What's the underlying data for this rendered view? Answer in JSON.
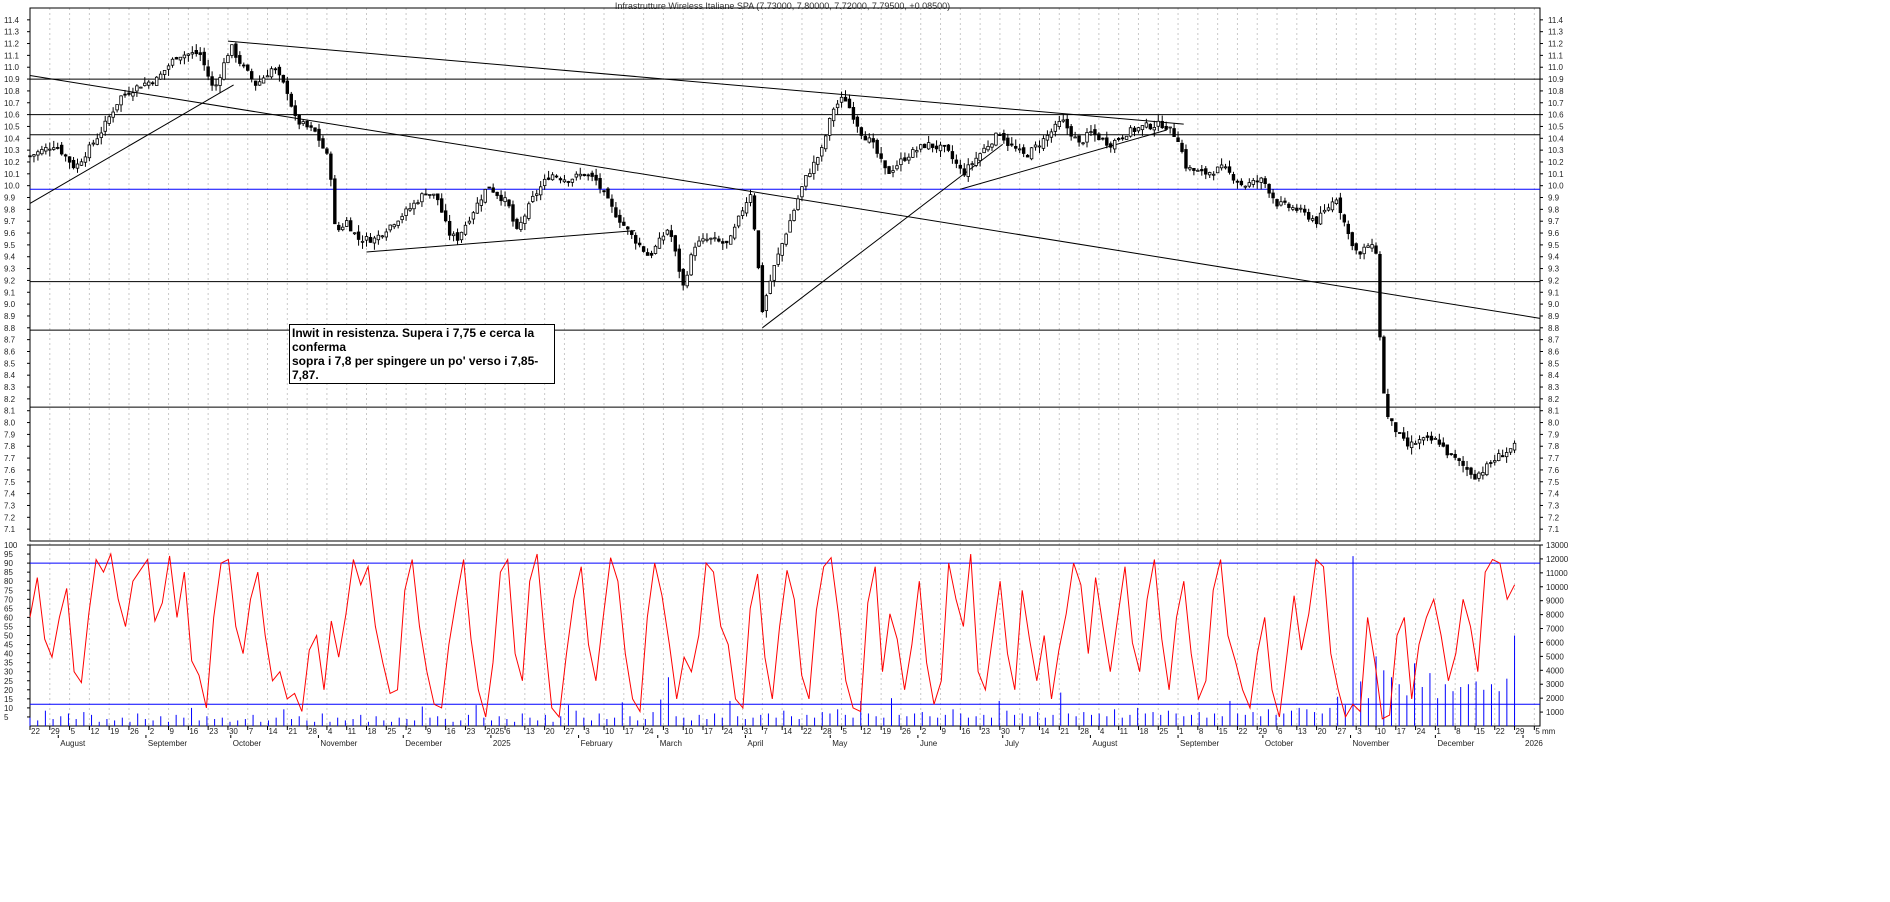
{
  "chart_title": "Infrastrutture Wireless Italiane SPA (7.73000, 7.80000, 7.72000, 7.79500, +0.08500)",
  "annotation": {
    "line1": "Inwit in resistenza. Supera i 7,75 e cerca la conferma",
    "line2": "sopra i 7,8 per spingere un po' verso i 7,85-7,87."
  },
  "colors": {
    "candle": "#000000",
    "stochastic": "#ff0000",
    "volume": "#0000ff",
    "support_blue": "#0000ff",
    "horizontal_line": "#000000",
    "trendline": "#000000",
    "grid": "#c8c8c8"
  },
  "chart_data": [
    {
      "type": "candlestick",
      "title": "Infrastrutture Wireless Italiane SPA (7.73000, 7.80000, 7.72000, 7.79500, +0.08500)",
      "last_ohlc": {
        "open": 7.73,
        "high": 7.8,
        "low": 7.72,
        "close": 7.795,
        "change": 0.085
      },
      "ylim": [
        7.0,
        11.5
      ],
      "ytick_labels": [
        "7.1",
        "7.2",
        "7.3",
        "7.4",
        "7.5",
        "7.6",
        "7.7",
        "7.8",
        "7.9",
        "8.0",
        "8.1",
        "8.2",
        "8.3",
        "8.4",
        "8.5",
        "8.6",
        "8.7",
        "8.8",
        "8.9",
        "9.0",
        "9.1",
        "9.2",
        "9.3",
        "9.4",
        "9.5",
        "9.6",
        "9.7",
        "9.8",
        "9.9",
        "10.0",
        "10.1",
        "10.2",
        "10.3",
        "10.4",
        "10.5",
        "10.6",
        "10.7",
        "10.8",
        "10.9",
        "11.0",
        "11.1",
        "11.2",
        "11.3",
        "11.4"
      ],
      "xtick_labels": [
        "22",
        "29",
        "5",
        "12",
        "19",
        "26",
        "2",
        "9",
        "16",
        "23",
        "30",
        "7",
        "14",
        "21",
        "28",
        "4",
        "11",
        "18",
        "25",
        "2",
        "9",
        "16",
        "23",
        "2025",
        "6",
        "13",
        "20",
        "27",
        "3",
        "10",
        "17",
        "24",
        "3",
        "10",
        "17",
        "24",
        "31",
        "7",
        "14",
        "22",
        "28",
        "5",
        "12",
        "19",
        "26",
        "2",
        "9",
        "16",
        "23",
        "30",
        "7",
        "14",
        "21",
        "28",
        "4",
        "11",
        "18",
        "25",
        "1",
        "8",
        "15",
        "22",
        "29",
        "6",
        "13",
        "20",
        "27",
        "3",
        "10",
        "17",
        "24",
        "1",
        "8",
        "15",
        "22",
        "29",
        "5"
      ],
      "month_labels": [
        "August",
        "September",
        "October",
        "November",
        "December",
        "2025",
        "February",
        "March",
        "April",
        "May",
        "June",
        "July",
        "August",
        "September",
        "October",
        "November",
        "December",
        "2026"
      ],
      "horizontal_levels": [
        {
          "value": 10.9,
          "color": "#000000"
        },
        {
          "value": 10.6,
          "color": "#000000"
        },
        {
          "value": 10.43,
          "color": "#000000"
        },
        {
          "value": 9.97,
          "color": "#0000ff"
        },
        {
          "value": 9.19,
          "color": "#000000"
        },
        {
          "value": 8.78,
          "color": "#000000"
        },
        {
          "value": 8.13,
          "color": "#000000"
        }
      ],
      "trendlines": [
        {
          "from": [
            "2024-07-22",
            9.85
          ],
          "to": [
            "2024-10-02",
            10.85
          ]
        },
        {
          "from": [
            "2024-07-22",
            10.93
          ],
          "to": [
            "2026-01-07",
            8.88
          ]
        },
        {
          "from": [
            "2024-09-30",
            11.22
          ],
          "to": [
            "2025-09-03",
            10.52
          ]
        },
        {
          "from": [
            "2024-11-18",
            9.44
          ],
          "to": [
            "2025-02-21",
            9.62
          ]
        },
        {
          "from": [
            "2025-04-07",
            8.8
          ],
          "to": [
            "2025-07-01",
            10.35
          ]
        },
        {
          "from": [
            "2025-06-16",
            9.97
          ],
          "to": [
            "2025-08-28",
            10.47
          ]
        }
      ],
      "close_path": [
        [
          "2024-07-22",
          10.25
        ],
        [
          "2024-07-31",
          10.35
        ],
        [
          "2024-08-07",
          10.15
        ],
        [
          "2024-08-16",
          10.45
        ],
        [
          "2024-08-23",
          10.75
        ],
        [
          "2024-08-30",
          10.85
        ],
        [
          "2024-09-05",
          10.9
        ],
        [
          "2024-09-12",
          11.1
        ],
        [
          "2024-09-20",
          11.12
        ],
        [
          "2024-09-25",
          10.8
        ],
        [
          "2024-10-01",
          11.18
        ],
        [
          "2024-10-04",
          11.05
        ],
        [
          "2024-10-10",
          10.85
        ],
        [
          "2024-10-16",
          11.0
        ],
        [
          "2024-10-21",
          10.8
        ],
        [
          "2024-10-24",
          10.55
        ],
        [
          "2024-10-31",
          10.45
        ],
        [
          "2024-11-05",
          10.2
        ],
        [
          "2024-11-07",
          9.6
        ],
        [
          "2024-11-11",
          9.7
        ],
        [
          "2024-11-15",
          9.55
        ],
        [
          "2024-11-21",
          9.55
        ],
        [
          "2024-11-28",
          9.7
        ],
        [
          "2024-12-03",
          9.8
        ],
        [
          "2024-12-09",
          9.95
        ],
        [
          "2024-12-13",
          9.9
        ],
        [
          "2024-12-17",
          9.6
        ],
        [
          "2024-12-20",
          9.55
        ],
        [
          "2024-12-31",
          10.0
        ],
        [
          "2025-01-07",
          9.85
        ],
        [
          "2025-01-10",
          9.6
        ],
        [
          "2025-01-16",
          9.9
        ],
        [
          "2025-01-22",
          10.1
        ],
        [
          "2025-01-28",
          10.05
        ],
        [
          "2025-02-03",
          10.1
        ],
        [
          "2025-02-07",
          10.05
        ],
        [
          "2025-02-13",
          9.8
        ],
        [
          "2025-02-19",
          9.6
        ],
        [
          "2025-02-26",
          9.4
        ],
        [
          "2025-03-05",
          9.65
        ],
        [
          "2025-03-10",
          9.15
        ],
        [
          "2025-03-14",
          9.5
        ],
        [
          "2025-03-19",
          9.55
        ],
        [
          "2025-03-26",
          9.5
        ],
        [
          "2025-03-31",
          9.8
        ],
        [
          "2025-04-03",
          9.95
        ],
        [
          "2025-04-07",
          8.95
        ],
        [
          "2025-04-11",
          9.3
        ],
        [
          "2025-04-16",
          9.65
        ],
        [
          "2025-04-22",
          10.05
        ],
        [
          "2025-04-28",
          10.3
        ],
        [
          "2025-05-02",
          10.65
        ],
        [
          "2025-05-06",
          10.75
        ],
        [
          "2025-05-12",
          10.45
        ],
        [
          "2025-05-16",
          10.35
        ],
        [
          "2025-05-21",
          10.1
        ],
        [
          "2025-05-28",
          10.25
        ],
        [
          "2025-06-04",
          10.35
        ],
        [
          "2025-06-11",
          10.3
        ],
        [
          "2025-06-17",
          10.1
        ],
        [
          "2025-06-24",
          10.3
        ],
        [
          "2025-06-30",
          10.45
        ],
        [
          "2025-07-03",
          10.35
        ],
        [
          "2025-07-09",
          10.25
        ],
        [
          "2025-07-16",
          10.4
        ],
        [
          "2025-07-22",
          10.55
        ],
        [
          "2025-07-28",
          10.35
        ],
        [
          "2025-08-01",
          10.45
        ],
        [
          "2025-08-08",
          10.35
        ],
        [
          "2025-08-14",
          10.45
        ],
        [
          "2025-08-20",
          10.5
        ],
        [
          "2025-08-27",
          10.52
        ],
        [
          "2025-09-01",
          10.4
        ],
        [
          "2025-09-04",
          10.15
        ],
        [
          "2025-09-10",
          10.1
        ],
        [
          "2025-09-17",
          10.15
        ],
        [
          "2025-09-24",
          10.0
        ],
        [
          "2025-10-01",
          10.05
        ],
        [
          "2025-10-06",
          9.85
        ],
        [
          "2025-10-13",
          9.8
        ],
        [
          "2025-10-20",
          9.7
        ],
        [
          "2025-10-27",
          9.9
        ],
        [
          "2025-10-31",
          9.6
        ],
        [
          "2025-11-04",
          9.4
        ],
        [
          "2025-11-07",
          9.5
        ],
        [
          "2025-11-10",
          9.45
        ],
        [
          "2025-11-12",
          8.4
        ],
        [
          "2025-11-14",
          8.05
        ],
        [
          "2025-11-18",
          7.9
        ],
        [
          "2025-11-21",
          7.8
        ],
        [
          "2025-11-26",
          7.85
        ],
        [
          "2025-12-02",
          7.85
        ],
        [
          "2025-12-05",
          7.75
        ],
        [
          "2025-12-10",
          7.65
        ],
        [
          "2025-12-15",
          7.55
        ],
        [
          "2025-12-18",
          7.6
        ],
        [
          "2025-12-23",
          7.71
        ],
        [
          "2025-12-29",
          7.795
        ]
      ]
    },
    {
      "type": "line+bar",
      "series": [
        {
          "type": "line",
          "color": "#ff0000",
          "values": [
            60,
            82,
            48,
            38,
            60,
            76,
            30,
            24,
            62,
            92,
            85,
            95,
            70,
            55,
            80,
            86,
            92,
            58,
            68,
            94,
            60,
            85,
            36,
            28,
            10,
            60,
            90,
            92,
            55,
            40,
            70,
            85,
            50,
            25,
            30,
            15,
            18,
            8,
            42,
            50,
            20,
            58,
            38,
            62,
            92,
            78,
            88,
            55,
            35,
            18,
            20,
            75,
            92,
            55,
            30,
            12,
            10,
            45,
            70,
            92,
            48,
            20,
            5,
            35,
            85,
            92,
            40,
            25,
            80,
            95,
            50,
            10,
            5,
            40,
            70,
            88,
            45,
            25,
            60,
            93,
            80,
            40,
            15,
            8,
            60,
            90,
            72,
            45,
            15,
            38,
            30,
            50,
            90,
            85,
            55,
            45,
            15,
            10,
            65,
            84,
            38,
            15,
            55,
            86,
            70,
            28,
            15,
            64,
            88,
            93,
            62,
            25,
            10,
            8,
            68,
            88,
            30,
            62,
            48,
            20,
            45,
            80,
            35,
            12,
            25,
            90,
            70,
            55,
            95,
            30,
            20,
            50,
            80,
            40,
            20,
            75,
            48,
            25,
            50,
            15,
            42,
            62,
            90,
            78,
            40,
            82,
            55,
            30,
            60,
            88,
            46,
            30,
            70,
            92,
            48,
            20,
            60,
            80,
            40,
            15,
            25,
            75,
            92,
            50,
            36,
            20,
            10,
            40,
            60,
            20,
            5,
            38,
            72,
            42,
            62,
            92,
            88,
            40,
            20,
            5,
            12,
            8,
            60,
            35,
            4,
            6,
            50,
            60,
            15,
            45,
            60,
            70,
            50,
            25,
            40,
            70,
            55,
            30,
            85,
            92,
            90,
            70,
            78
          ]
        },
        {
          "type": "bar",
          "color": "#0000ff",
          "values": [
            600,
            400,
            1100,
            500,
            700,
            900,
            500,
            1000,
            800,
            300,
            500,
            400,
            600,
            300,
            900,
            500,
            400,
            700,
            300,
            800,
            600,
            1300,
            400,
            700,
            500,
            600,
            300,
            400,
            500,
            800,
            300,
            400,
            600,
            1200,
            500,
            700,
            400,
            300,
            900,
            300,
            600,
            400,
            500,
            800,
            300,
            700,
            400,
            300,
            600,
            500,
            400,
            1400,
            600,
            700,
            500,
            300,
            400,
            800,
            1500,
            600,
            400,
            700,
            500,
            300,
            900,
            600,
            400,
            800,
            300,
            700,
            1500,
            1100,
            600,
            400,
            900,
            500,
            600,
            1700,
            700,
            400,
            500,
            1000,
            1900,
            3500,
            700,
            600,
            400,
            800,
            500,
            900,
            600,
            1800,
            700,
            500,
            600,
            800,
            900,
            600,
            1100,
            700,
            500,
            800,
            600,
            1000,
            900,
            1200,
            800,
            600,
            1800,
            900,
            700,
            600,
            2000,
            800,
            700,
            900,
            1000,
            700,
            600,
            800,
            1200,
            900,
            600,
            700,
            800,
            600,
            1800,
            1100,
            800,
            900,
            700,
            1000,
            600,
            800,
            2400,
            900,
            700,
            1000,
            800,
            900,
            700,
            1200,
            600,
            800,
            1300,
            900,
            1000,
            800,
            1100,
            900,
            700,
            800,
            1000,
            600,
            900,
            700,
            1800,
            900,
            800,
            1000,
            700,
            1200,
            800,
            900,
            1100,
            1300,
            1200,
            1000,
            900,
            1300,
            2100,
            1500,
            12200,
            3200,
            2000,
            5000,
            4000,
            3500,
            3000,
            2200,
            4500,
            2800,
            3800,
            2000,
            3000,
            2500,
            2800,
            3000,
            3200,
            2600,
            3000,
            2500,
            3400,
            6500
          ]
        }
      ],
      "left_ylim": [
        0,
        100
      ],
      "left_ytick_labels": [
        "100",
        "95",
        "90",
        "85",
        "80",
        "75",
        "70",
        "65",
        "60",
        "55",
        "50",
        "45",
        "40",
        "35",
        "30",
        "25",
        "20",
        "15",
        "10",
        "5"
      ],
      "right_ytick_labels": [
        "13000",
        "12000",
        "11000",
        "10000",
        "9000",
        "8000",
        "7000",
        "6000",
        "5000",
        "4000",
        "3000",
        "2000",
        "1000"
      ],
      "right_ylim": [
        0,
        13000
      ],
      "horizontal_levels": [
        {
          "value": 90,
          "color": "#0000ff"
        },
        {
          "value": 12,
          "color": "#0000ff"
        }
      ],
      "xtick_labels": [
        "22",
        "29",
        "5",
        "12",
        "19",
        "26",
        "2",
        "9",
        "16",
        "23",
        "30",
        "7",
        "14",
        "21",
        "28",
        "4",
        "11",
        "18",
        "25",
        "2",
        "9",
        "16",
        "23",
        "2025",
        "6",
        "13",
        "20",
        "27",
        "3",
        "10",
        "17",
        "24",
        "3",
        "10",
        "17",
        "24",
        "31",
        "7",
        "14",
        "22",
        "28",
        "5",
        "12",
        "19",
        "26",
        "2",
        "9",
        "16",
        "23",
        "30",
        "7",
        "14",
        "21",
        "28",
        "4",
        "11",
        "18",
        "25",
        "1",
        "8",
        "15",
        "22",
        "29",
        "6",
        "13",
        "20",
        "27",
        "3",
        "10",
        "17",
        "24",
        "1",
        "8",
        "15",
        "22",
        "29",
        "5"
      ],
      "month_labels": [
        "August",
        "September",
        "October",
        "November",
        "December",
        "2025",
        "February",
        "March",
        "April",
        "May",
        "June",
        "July",
        "August",
        "September",
        "October",
        "November",
        "December",
        "2026"
      ],
      "corner_label": "mm"
    }
  ]
}
